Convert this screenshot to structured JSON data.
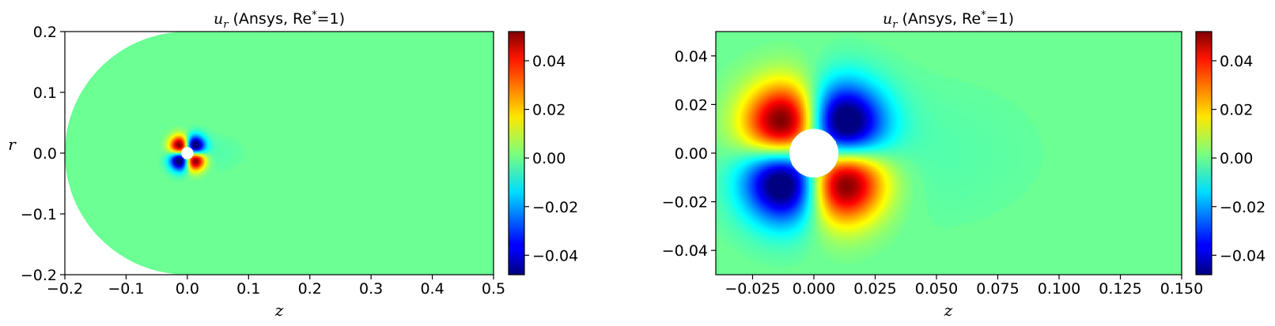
{
  "chart_data": [
    {
      "type": "heatmap",
      "title_var": "u",
      "title_sub": "r",
      "title_rest": " (Ansys, Re",
      "title_sup": "*",
      "title_end": "=1)",
      "xlabel": "z",
      "ylabel": "r",
      "xlim": [
        -0.2,
        0.5
      ],
      "ylim": [
        -0.2,
        0.2
      ],
      "xticks": [
        -0.2,
        -0.1,
        0.0,
        0.1,
        0.2,
        0.3,
        0.4,
        0.5
      ],
      "xtick_labels": [
        "−0.2",
        "−0.1",
        "0.0",
        "0.1",
        "0.2",
        "0.3",
        "0.4",
        "0.5"
      ],
      "yticks": [
        -0.2,
        -0.1,
        0.0,
        0.1,
        0.2
      ],
      "ytick_labels": [
        "−0.2",
        "−0.1",
        "0.0",
        "0.1",
        "0.2"
      ],
      "domain_inlet_radius": 0.2,
      "sphere_radius": 0.01,
      "lobe_amplitude": 0.05,
      "colormap": "jet",
      "colorbar": {
        "range": [
          -0.048,
          0.052
        ],
        "ticks": [
          -0.04,
          -0.02,
          0.0,
          0.02,
          0.04
        ],
        "tick_labels": [
          "−0.04",
          "−0.02",
          "0.00",
          "0.02",
          "0.04"
        ]
      },
      "grid": false
    },
    {
      "type": "heatmap",
      "title_var": "u",
      "title_sub": "r",
      "title_rest": " (Ansys, Re",
      "title_sup": "*",
      "title_end": "=1)",
      "xlabel": "z",
      "ylabel": "",
      "xlim": [
        -0.04,
        0.15
      ],
      "ylim": [
        -0.05,
        0.05
      ],
      "xticks": [
        -0.025,
        0.0,
        0.025,
        0.05,
        0.075,
        0.1,
        0.125,
        0.15
      ],
      "xtick_labels": [
        "−0.025",
        "0.000",
        "0.025",
        "0.050",
        "0.075",
        "0.100",
        "0.125",
        "0.150"
      ],
      "yticks": [
        -0.04,
        -0.02,
        0.0,
        0.02,
        0.04
      ],
      "ytick_labels": [
        "−0.04",
        "−0.02",
        "0.00",
        "0.02",
        "0.04"
      ],
      "sphere_radius": 0.01,
      "lobe_amplitude": 0.05,
      "colormap": "jet",
      "colorbar": {
        "range": [
          -0.048,
          0.052
        ],
        "ticks": [
          -0.04,
          -0.02,
          0.0,
          0.02,
          0.04
        ],
        "tick_labels": [
          "−0.04",
          "−0.02",
          "0.00",
          "0.02",
          "0.04"
        ]
      },
      "grid": false
    }
  ]
}
